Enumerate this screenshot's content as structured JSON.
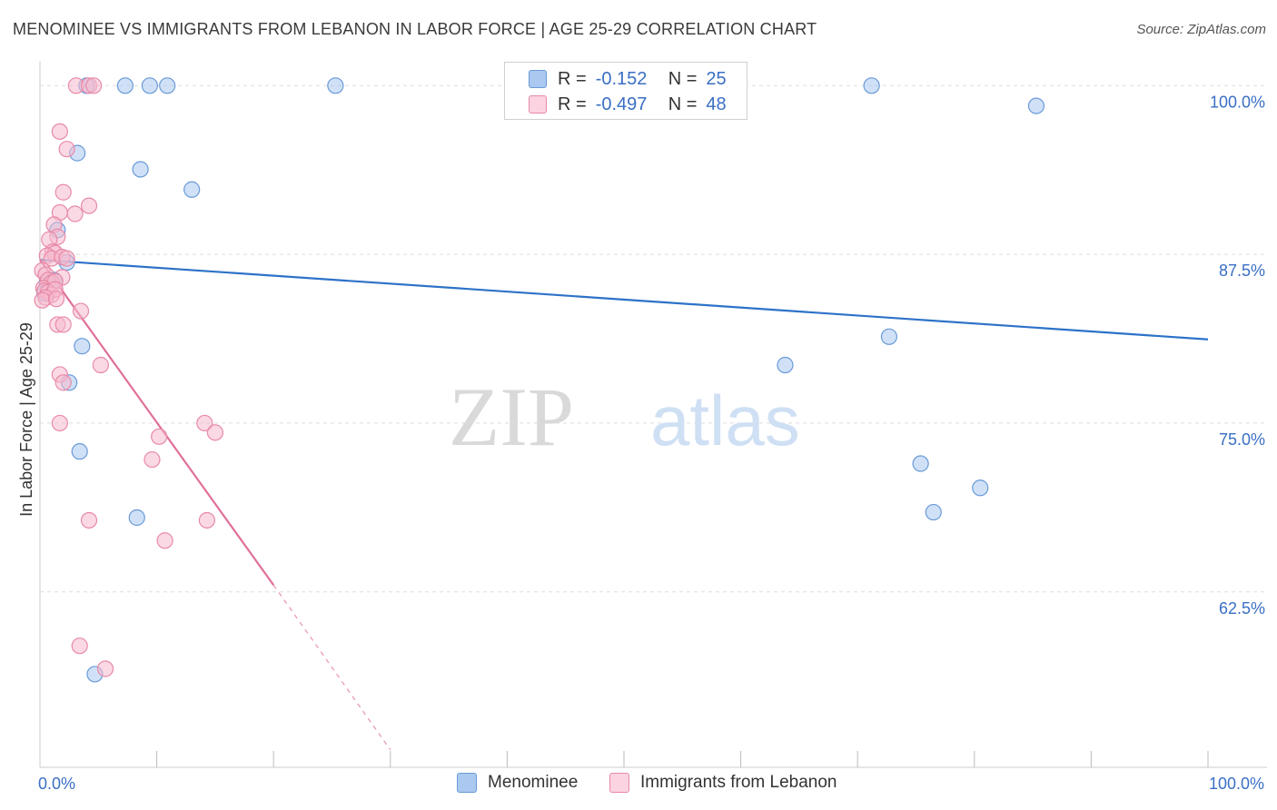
{
  "header": {
    "title": "MENOMINEE VS IMMIGRANTS FROM LEBANON IN LABOR FORCE | AGE 25-29 CORRELATION CHART",
    "source": "Source: ZipAtlas.com"
  },
  "legend": {
    "rows": [
      {
        "r_label": "R =",
        "r_value": "-0.152",
        "n_label": "N =",
        "n_value": "25"
      },
      {
        "r_label": "R =",
        "r_value": "-0.497",
        "n_label": "N =",
        "n_value": "48"
      }
    ]
  },
  "bottom_legend": {
    "items": [
      {
        "label": "Menominee"
      },
      {
        "label": "Immigrants from Lebanon"
      }
    ]
  },
  "watermark": {
    "zip": "ZIP",
    "atlas": "atlas"
  },
  "colors": {
    "blue_fill": "#aac8f0",
    "blue_stroke": "#6a9ad8",
    "blue_line": "#2d72c8",
    "pink_fill": "#f6b9ce",
    "pink_stroke": "#e88aa8",
    "pink_line": "#e0709a",
    "axis_text": "#3a6fc4",
    "grid": "#dddddd"
  },
  "chart_data": {
    "type": "scatter",
    "title": "MENOMINEE VS IMMIGRANTS FROM LEBANON IN LABOR FORCE | AGE 25-29 CORRELATION CHART",
    "xlabel": "",
    "ylabel": "In Labor Force | Age 25-29",
    "xlim": [
      0,
      100
    ],
    "ylim": [
      49.5,
      101.5
    ],
    "x_tick_labels": [
      {
        "value": 0,
        "label": "0.0%"
      },
      {
        "value": 100,
        "label": "100.0%"
      }
    ],
    "y_ticks": [
      {
        "value": 100,
        "label": "100.0%"
      },
      {
        "value": 87.5,
        "label": "87.5%"
      },
      {
        "value": 75,
        "label": "75.0%"
      },
      {
        "value": 62.5,
        "label": "62.5%"
      }
    ],
    "grid": true,
    "series": [
      {
        "name": "Menominee",
        "color": "blue",
        "points": [
          [
            4.0,
            100.0
          ],
          [
            7.3,
            100.0
          ],
          [
            9.4,
            100.0
          ],
          [
            10.9,
            100.0
          ],
          [
            25.3,
            100.0
          ],
          [
            71.2,
            100.0
          ],
          [
            85.3,
            98.5
          ],
          [
            3.2,
            95.0
          ],
          [
            8.6,
            93.8
          ],
          [
            13.0,
            92.3
          ],
          [
            1.5,
            89.3
          ],
          [
            2.3,
            86.9
          ],
          [
            1.2,
            85.6
          ],
          [
            0.6,
            85.4
          ],
          [
            0.4,
            84.6
          ],
          [
            3.6,
            80.7
          ],
          [
            2.5,
            78.0
          ],
          [
            72.7,
            81.4
          ],
          [
            63.8,
            79.3
          ],
          [
            3.4,
            72.9
          ],
          [
            75.4,
            72.0
          ],
          [
            80.5,
            70.2
          ],
          [
            8.3,
            68.0
          ],
          [
            76.5,
            68.4
          ],
          [
            4.7,
            56.4
          ]
        ],
        "trend": {
          "x0": 0,
          "y0": 87.1,
          "x1": 100,
          "y1": 81.2
        }
      },
      {
        "name": "Immigrants from Lebanon",
        "color": "pink",
        "points": [
          [
            3.1,
            100.0
          ],
          [
            4.2,
            100.0
          ],
          [
            4.6,
            100.0
          ],
          [
            1.7,
            96.6
          ],
          [
            2.3,
            95.3
          ],
          [
            2.0,
            92.1
          ],
          [
            4.2,
            91.1
          ],
          [
            1.7,
            90.6
          ],
          [
            3.0,
            90.5
          ],
          [
            1.2,
            89.7
          ],
          [
            1.5,
            88.8
          ],
          [
            0.8,
            88.6
          ],
          [
            1.1,
            87.7
          ],
          [
            1.3,
            87.6
          ],
          [
            0.6,
            87.4
          ],
          [
            1.0,
            87.2
          ],
          [
            1.9,
            87.3
          ],
          [
            2.3,
            87.2
          ],
          [
            0.2,
            86.3
          ],
          [
            0.5,
            86.0
          ],
          [
            1.9,
            85.8
          ],
          [
            0.7,
            85.6
          ],
          [
            1.0,
            85.4
          ],
          [
            1.3,
            85.5
          ],
          [
            0.3,
            85.0
          ],
          [
            0.4,
            84.8
          ],
          [
            0.7,
            84.7
          ],
          [
            1.0,
            84.5
          ],
          [
            1.3,
            84.9
          ],
          [
            0.5,
            84.3
          ],
          [
            0.2,
            84.1
          ],
          [
            1.4,
            84.2
          ],
          [
            3.5,
            83.3
          ],
          [
            1.5,
            82.3
          ],
          [
            2.0,
            82.3
          ],
          [
            5.2,
            79.3
          ],
          [
            1.7,
            78.6
          ],
          [
            2.0,
            78.0
          ],
          [
            1.7,
            75.0
          ],
          [
            14.1,
            75.0
          ],
          [
            10.2,
            74.0
          ],
          [
            15.0,
            74.3
          ],
          [
            9.6,
            72.3
          ],
          [
            4.2,
            67.8
          ],
          [
            14.3,
            67.8
          ],
          [
            10.7,
            66.3
          ],
          [
            3.4,
            58.5
          ],
          [
            5.6,
            56.8
          ]
        ],
        "trend": {
          "x0": 0,
          "y0": 87.1,
          "x1": 20,
          "y1": 63.0
        },
        "trend_extension": {
          "x0": 20,
          "y0": 63.0,
          "x1": 30,
          "y1": 50.8
        }
      }
    ]
  }
}
